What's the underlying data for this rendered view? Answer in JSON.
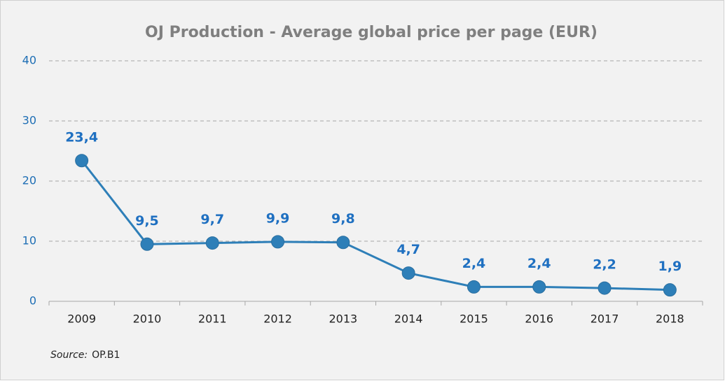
{
  "chart_data": {
    "type": "line",
    "title": "OJ Production - Average global price per page (EUR)",
    "categories": [
      "2009",
      "2010",
      "2011",
      "2012",
      "2013",
      "2014",
      "2015",
      "2016",
      "2017",
      "2018"
    ],
    "series": [
      {
        "color": "#2e7fb8",
        "values": [
          23.4,
          9.5,
          9.7,
          9.9,
          9.8,
          4.7,
          2.4,
          2.4,
          2.2,
          1.9
        ],
        "value_labels": [
          "23,4",
          "9,5",
          "9,7",
          "9,9",
          "9,8",
          "4,7",
          "2,4",
          "2,4",
          "2,2",
          "1,9"
        ]
      }
    ],
    "ylim": [
      0,
      40
    ],
    "yticks": [
      0,
      10,
      20,
      30,
      40
    ],
    "grid": true,
    "source_label": "Source:",
    "source": "OP.B1"
  }
}
